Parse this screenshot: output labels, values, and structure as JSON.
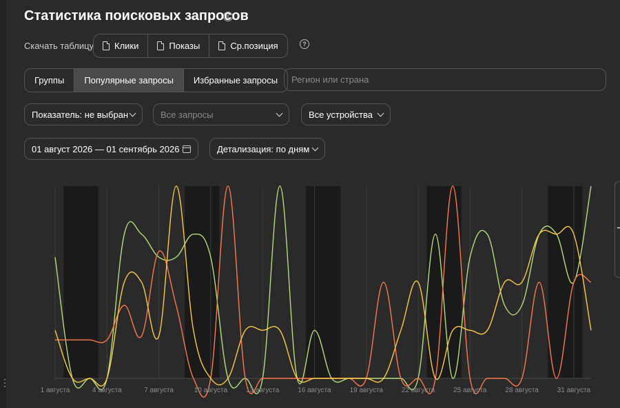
{
  "header": {
    "title": "Статистика поисковых запросов"
  },
  "download": {
    "label": "Скачать таблицу",
    "buttons": [
      {
        "label": "Клики"
      },
      {
        "label": "Показы"
      },
      {
        "label": "Ср.позиция"
      }
    ]
  },
  "query_tabs": [
    {
      "label": "Группы",
      "active": false
    },
    {
      "label": "Популярные запросы",
      "active": true
    },
    {
      "label": "Избранные запросы",
      "active": false
    }
  ],
  "region": {
    "placeholder": "Регион или страна"
  },
  "filters": {
    "metric": "Показатель: не выбран",
    "queries_placeholder": "Все запросы",
    "devices": "Все устройства",
    "date_range": "01 август 2026 — 01 сентябрь 2026",
    "detail": "Детализация: по дням"
  },
  "colors": {
    "green": "#b4e07a",
    "orange": "#ff7a4a",
    "yellow": "#ffcb45",
    "background": "#2a2a2a",
    "weekend": "#1a1a1a"
  },
  "chart_data": {
    "type": "line",
    "x_tick_labels": [
      "1 августа",
      "4 августа",
      "7 августа",
      "10 августа",
      "13 августа",
      "16 августа",
      "19 августа",
      "22 августа",
      "25 августа",
      "28 августа",
      "31 августа"
    ],
    "days": 32,
    "weekend_days": [
      [
        1,
        2
      ],
      [
        8,
        9
      ],
      [
        15,
        16
      ],
      [
        22,
        23
      ],
      [
        29,
        30
      ]
    ],
    "ylim": [
      0,
      100
    ],
    "grid": true,
    "series": [
      {
        "color": "#b4e07a",
        "values": [
          63,
          0,
          0,
          0,
          75,
          75,
          63,
          63,
          75,
          63,
          0,
          0,
          0,
          100,
          0,
          25,
          0,
          0,
          0,
          0,
          0,
          0,
          75,
          0,
          63,
          75,
          38,
          38,
          75,
          75,
          50,
          100
        ]
      },
      {
        "color": "#ff7a4a",
        "values": [
          20,
          20,
          20,
          20,
          38,
          22,
          66,
          38,
          0,
          0,
          100,
          0,
          0,
          0,
          0,
          0,
          0,
          0,
          0,
          50,
          0,
          0,
          0,
          100,
          0,
          0,
          0,
          0,
          50,
          0,
          50,
          50
        ]
      },
      {
        "color": "#ffcb45",
        "values": [
          25,
          0,
          0,
          0,
          50,
          50,
          22,
          100,
          25,
          0,
          0,
          25,
          25,
          25,
          0,
          0,
          0,
          0,
          0,
          0,
          25,
          50,
          0,
          25,
          25,
          25,
          50,
          50,
          75,
          75,
          75,
          25
        ]
      }
    ]
  }
}
